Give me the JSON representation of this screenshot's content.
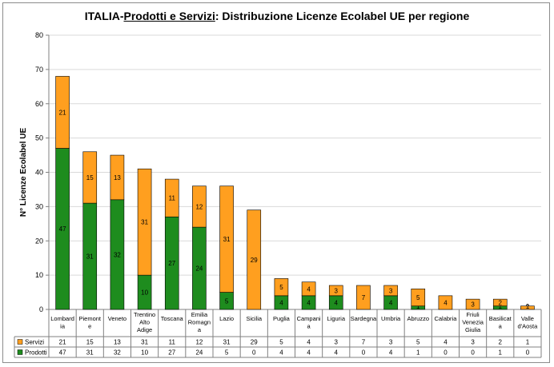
{
  "chart_data": {
    "type": "bar",
    "stacked": true,
    "title_parts": [
      "ITALIA-",
      "Prodotti e Servizi",
      ": Distribuzione Licenze Ecolabel UE  per regione"
    ],
    "ylabel": "N° Licenze  Ecolabel  UE",
    "xlabel": "",
    "ylim": [
      0,
      80
    ],
    "yticks": [
      0,
      10,
      20,
      30,
      40,
      50,
      60,
      70,
      80
    ],
    "grid": true,
    "legend_placement": "data-table-below",
    "categories": [
      [
        "Lombard",
        "ia"
      ],
      [
        "Piemont",
        "e"
      ],
      [
        "Veneto"
      ],
      [
        "Trentino",
        "Alto",
        "Adige"
      ],
      [
        "Toscana"
      ],
      [
        "Emilia",
        "Romagn",
        "a"
      ],
      [
        "Lazio"
      ],
      [
        "Sicilia"
      ],
      [
        "Puglia"
      ],
      [
        "Campani",
        "a"
      ],
      [
        "Liguria"
      ],
      [
        "Sardegna"
      ],
      [
        "Umbria"
      ],
      [
        "Abruzzo"
      ],
      [
        "Calabria"
      ],
      [
        "Friuli",
        "Venezia",
        "Giulia"
      ],
      [
        "Basilicat",
        "a"
      ],
      [
        "Valle",
        "d'Aosta"
      ]
    ],
    "series": [
      {
        "name": "Prodotti",
        "color": "#1e8c1e",
        "values": [
          47,
          31,
          32,
          10,
          27,
          24,
          5,
          0,
          4,
          4,
          4,
          0,
          4,
          1,
          0,
          0,
          1,
          0
        ]
      },
      {
        "name": "Servizi",
        "color": "#ff9f1f",
        "values": [
          21,
          15,
          13,
          31,
          11,
          12,
          31,
          29,
          5,
          4,
          3,
          7,
          3,
          5,
          4,
          3,
          2,
          1
        ]
      }
    ]
  }
}
